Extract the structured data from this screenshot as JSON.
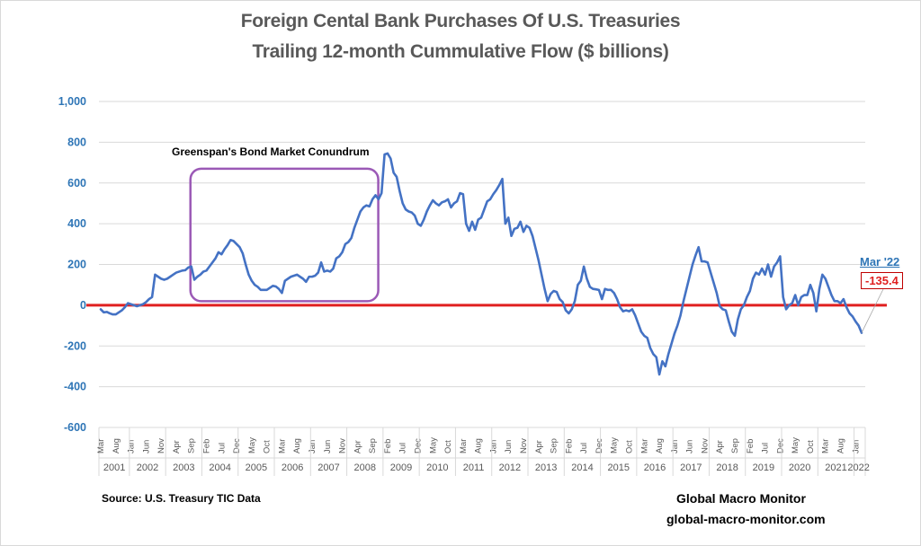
{
  "chart_data": {
    "type": "line",
    "title": "Foreign Cental Bank Purchases Of U.S. Treasuries",
    "subtitle": "Trailing 12-month Cummulative Flow ($ billions)",
    "xlabel": "",
    "ylabel": "",
    "ylim": [
      -600,
      1000
    ],
    "yticks": [
      1000,
      800,
      600,
      400,
      200,
      0,
      -200,
      -400,
      -600
    ],
    "ytick_labels": [
      "1,000",
      "800",
      "600",
      "400",
      "200",
      "0",
      "-200",
      "-400",
      "-600"
    ],
    "grid": true,
    "start": {
      "year": 2001,
      "month": 3
    },
    "end": {
      "year": 2022,
      "month": 3
    },
    "years": [
      "2001",
      "2002",
      "2003",
      "2004",
      "2005",
      "2006",
      "2007",
      "2008",
      "2009",
      "2010",
      "2011",
      "2012",
      "2013",
      "2014",
      "2015",
      "2016",
      "2017",
      "2018",
      "2019",
      "2020",
      "2021",
      "2022"
    ],
    "month_names": [
      "Jan",
      "Feb",
      "Mar",
      "Apr",
      "May",
      "Jun",
      "Jul",
      "Aug",
      "Sep",
      "Oct",
      "Nov",
      "Dec"
    ],
    "month_label_every": 5,
    "anchors": [
      [
        "2001-03",
        -20
      ],
      [
        "2001-04",
        -35
      ],
      [
        "2001-05",
        -33
      ],
      [
        "2001-06",
        -40
      ],
      [
        "2001-07",
        -45
      ],
      [
        "2001-08",
        -45
      ],
      [
        "2001-09",
        -35
      ],
      [
        "2001-10",
        -25
      ],
      [
        "2001-11",
        -10
      ],
      [
        "2001-12",
        10
      ],
      [
        "2002-01",
        5
      ],
      [
        "2002-02",
        0
      ],
      [
        "2002-03",
        -5
      ],
      [
        "2002-04",
        0
      ],
      [
        "2002-05",
        5
      ],
      [
        "2002-06",
        15
      ],
      [
        "2002-07",
        30
      ],
      [
        "2002-08",
        40
      ],
      [
        "2002-09",
        150
      ],
      [
        "2002-10",
        140
      ],
      [
        "2002-11",
        130
      ],
      [
        "2002-12",
        125
      ],
      [
        "2003-01",
        130
      ],
      [
        "2003-02",
        140
      ],
      [
        "2003-03",
        150
      ],
      [
        "2003-04",
        160
      ],
      [
        "2003-05",
        165
      ],
      [
        "2003-06",
        170
      ],
      [
        "2003-07",
        172
      ],
      [
        "2003-08",
        185
      ],
      [
        "2003-09",
        190
      ],
      [
        "2003-10",
        125
      ],
      [
        "2003-11",
        140
      ],
      [
        "2003-12",
        150
      ],
      [
        "2004-01",
        165
      ],
      [
        "2004-02",
        170
      ],
      [
        "2004-03",
        190
      ],
      [
        "2004-04",
        210
      ],
      [
        "2004-05",
        230
      ],
      [
        "2004-06",
        260
      ],
      [
        "2004-07",
        250
      ],
      [
        "2004-08",
        275
      ],
      [
        "2004-09",
        295
      ],
      [
        "2004-10",
        320
      ],
      [
        "2004-11",
        315
      ],
      [
        "2004-12",
        300
      ],
      [
        "2005-01",
        285
      ],
      [
        "2005-02",
        255
      ],
      [
        "2005-03",
        200
      ],
      [
        "2005-04",
        150
      ],
      [
        "2005-05",
        120
      ],
      [
        "2005-06",
        100
      ],
      [
        "2005-07",
        90
      ],
      [
        "2005-08",
        75
      ],
      [
        "2005-09",
        75
      ],
      [
        "2005-10",
        75
      ],
      [
        "2005-11",
        85
      ],
      [
        "2005-12",
        95
      ],
      [
        "2006-01",
        92
      ],
      [
        "2006-02",
        80
      ],
      [
        "2006-03",
        60
      ],
      [
        "2006-04",
        120
      ],
      [
        "2006-05",
        130
      ],
      [
        "2006-06",
        140
      ],
      [
        "2006-07",
        145
      ],
      [
        "2006-08",
        150
      ],
      [
        "2006-09",
        140
      ],
      [
        "2006-10",
        130
      ],
      [
        "2006-11",
        115
      ],
      [
        "2006-12",
        140
      ],
      [
        "2007-01",
        140
      ],
      [
        "2007-02",
        145
      ],
      [
        "2007-03",
        160
      ],
      [
        "2007-04",
        210
      ],
      [
        "2007-05",
        165
      ],
      [
        "2007-06",
        170
      ],
      [
        "2007-07",
        165
      ],
      [
        "2007-08",
        180
      ],
      [
        "2007-09",
        230
      ],
      [
        "2007-10",
        240
      ],
      [
        "2007-11",
        260
      ],
      [
        "2007-12",
        300
      ],
      [
        "2008-01",
        310
      ],
      [
        "2008-02",
        330
      ],
      [
        "2008-03",
        380
      ],
      [
        "2008-04",
        420
      ],
      [
        "2008-05",
        460
      ],
      [
        "2008-06",
        480
      ],
      [
        "2008-07",
        490
      ],
      [
        "2008-08",
        485
      ],
      [
        "2008-09",
        520
      ],
      [
        "2008-10",
        540
      ],
      [
        "2008-11",
        520
      ],
      [
        "2008-12",
        550
      ],
      [
        "2009-01",
        740
      ],
      [
        "2009-02",
        745
      ],
      [
        "2009-03",
        720
      ],
      [
        "2009-04",
        650
      ],
      [
        "2009-05",
        630
      ],
      [
        "2009-06",
        560
      ],
      [
        "2009-07",
        500
      ],
      [
        "2009-08",
        470
      ],
      [
        "2009-09",
        460
      ],
      [
        "2009-10",
        455
      ],
      [
        "2009-11",
        440
      ],
      [
        "2009-12",
        400
      ],
      [
        "2010-01",
        390
      ],
      [
        "2010-02",
        420
      ],
      [
        "2010-03",
        460
      ],
      [
        "2010-04",
        490
      ],
      [
        "2010-05",
        515
      ],
      [
        "2010-06",
        500
      ],
      [
        "2010-07",
        490
      ],
      [
        "2010-08",
        505
      ],
      [
        "2010-09",
        510
      ],
      [
        "2010-10",
        520
      ],
      [
        "2010-11",
        480
      ],
      [
        "2010-12",
        500
      ],
      [
        "2011-01",
        510
      ],
      [
        "2011-02",
        550
      ],
      [
        "2011-03",
        545
      ],
      [
        "2011-04",
        400
      ],
      [
        "2011-05",
        365
      ],
      [
        "2011-06",
        410
      ],
      [
        "2011-07",
        370
      ],
      [
        "2011-08",
        420
      ],
      [
        "2011-09",
        430
      ],
      [
        "2011-10",
        470
      ],
      [
        "2011-11",
        510
      ],
      [
        "2011-12",
        520
      ],
      [
        "2012-01",
        545
      ],
      [
        "2012-02",
        565
      ],
      [
        "2012-03",
        590
      ],
      [
        "2012-04",
        620
      ],
      [
        "2012-05",
        400
      ],
      [
        "2012-06",
        430
      ],
      [
        "2012-07",
        340
      ],
      [
        "2012-08",
        375
      ],
      [
        "2012-09",
        380
      ],
      [
        "2012-10",
        410
      ],
      [
        "2012-11",
        360
      ],
      [
        "2012-12",
        390
      ],
      [
        "2013-01",
        380
      ],
      [
        "2013-02",
        340
      ],
      [
        "2013-03",
        280
      ],
      [
        "2013-04",
        220
      ],
      [
        "2013-05",
        150
      ],
      [
        "2013-06",
        80
      ],
      [
        "2013-07",
        20
      ],
      [
        "2013-08",
        55
      ],
      [
        "2013-09",
        70
      ],
      [
        "2013-10",
        65
      ],
      [
        "2013-11",
        30
      ],
      [
        "2013-12",
        15
      ],
      [
        "2014-01",
        -25
      ],
      [
        "2014-02",
        -40
      ],
      [
        "2014-03",
        -20
      ],
      [
        "2014-04",
        20
      ],
      [
        "2014-05",
        100
      ],
      [
        "2014-06",
        120
      ],
      [
        "2014-07",
        190
      ],
      [
        "2014-08",
        130
      ],
      [
        "2014-09",
        90
      ],
      [
        "2014-10",
        80
      ],
      [
        "2014-11",
        78
      ],
      [
        "2014-12",
        75
      ],
      [
        "2015-01",
        30
      ],
      [
        "2015-02",
        80
      ],
      [
        "2015-03",
        75
      ],
      [
        "2015-04",
        75
      ],
      [
        "2015-05",
        60
      ],
      [
        "2015-06",
        30
      ],
      [
        "2015-07",
        -10
      ],
      [
        "2015-08",
        -30
      ],
      [
        "2015-09",
        -25
      ],
      [
        "2015-10",
        -30
      ],
      [
        "2015-11",
        -20
      ],
      [
        "2015-12",
        -50
      ],
      [
        "2016-01",
        -90
      ],
      [
        "2016-02",
        -130
      ],
      [
        "2016-03",
        -150
      ],
      [
        "2016-04",
        -160
      ],
      [
        "2016-05",
        -210
      ],
      [
        "2016-06",
        -240
      ],
      [
        "2016-07",
        -255
      ],
      [
        "2016-08",
        -340
      ],
      [
        "2016-09",
        -275
      ],
      [
        "2016-10",
        -300
      ],
      [
        "2016-11",
        -240
      ],
      [
        "2016-12",
        -190
      ],
      [
        "2017-01",
        -140
      ],
      [
        "2017-02",
        -100
      ],
      [
        "2017-03",
        -50
      ],
      [
        "2017-04",
        20
      ],
      [
        "2017-05",
        80
      ],
      [
        "2017-06",
        140
      ],
      [
        "2017-07",
        200
      ],
      [
        "2017-08",
        245
      ],
      [
        "2017-09",
        285
      ],
      [
        "2017-10",
        215
      ],
      [
        "2017-11",
        215
      ],
      [
        "2017-12",
        210
      ],
      [
        "2018-01",
        160
      ],
      [
        "2018-02",
        110
      ],
      [
        "2018-03",
        60
      ],
      [
        "2018-04",
        -5
      ],
      [
        "2018-05",
        -20
      ],
      [
        "2018-06",
        -25
      ],
      [
        "2018-07",
        -80
      ],
      [
        "2018-08",
        -130
      ],
      [
        "2018-09",
        -150
      ],
      [
        "2018-10",
        -70
      ],
      [
        "2018-11",
        -20
      ],
      [
        "2018-12",
        0
      ],
      [
        "2019-01",
        40
      ],
      [
        "2019-02",
        70
      ],
      [
        "2019-03",
        130
      ],
      [
        "2019-04",
        160
      ],
      [
        "2019-05",
        150
      ],
      [
        "2019-06",
        180
      ],
      [
        "2019-07",
        150
      ],
      [
        "2019-08",
        200
      ],
      [
        "2019-09",
        140
      ],
      [
        "2019-10",
        190
      ],
      [
        "2019-11",
        210
      ],
      [
        "2019-12",
        240
      ],
      [
        "2020-01",
        40
      ],
      [
        "2020-02",
        -20
      ],
      [
        "2020-03",
        0
      ],
      [
        "2020-04",
        10
      ],
      [
        "2020-05",
        50
      ],
      [
        "2020-06",
        0
      ],
      [
        "2020-07",
        40
      ],
      [
        "2020-08",
        50
      ],
      [
        "2020-09",
        50
      ],
      [
        "2020-10",
        100
      ],
      [
        "2020-11",
        60
      ],
      [
        "2020-12",
        -30
      ],
      [
        "2021-01",
        80
      ],
      [
        "2021-02",
        150
      ],
      [
        "2021-03",
        130
      ],
      [
        "2021-04",
        90
      ],
      [
        "2021-05",
        50
      ],
      [
        "2021-06",
        20
      ],
      [
        "2021-07",
        20
      ],
      [
        "2021-08",
        10
      ],
      [
        "2021-09",
        30
      ],
      [
        "2021-10",
        -10
      ],
      [
        "2021-11",
        -40
      ],
      [
        "2021-12",
        -55
      ],
      [
        "2022-01",
        -80
      ],
      [
        "2022-02",
        -100
      ],
      [
        "2022-03",
        -135.4
      ]
    ],
    "series": [
      {
        "name": "Trailing 12-month Cummulative Flow",
        "color": "#4472c4"
      }
    ],
    "reference_line": {
      "value": 0,
      "color": "#e02020"
    },
    "annotations": [
      {
        "text": "Greenspan's Bond Market Conundrum",
        "span": [
          "2003-09",
          "2009-01"
        ],
        "y_range": [
          20,
          670
        ],
        "box_color": "#9b59b6"
      },
      {
        "label": "Mar '22",
        "value_label": "-135.4",
        "point": "2022-03"
      }
    ]
  },
  "footer": {
    "source": "Source:  U.S. Treasury TIC Data",
    "brand": "Global Macro Monitor",
    "site": "global-macro-monitor.com"
  }
}
